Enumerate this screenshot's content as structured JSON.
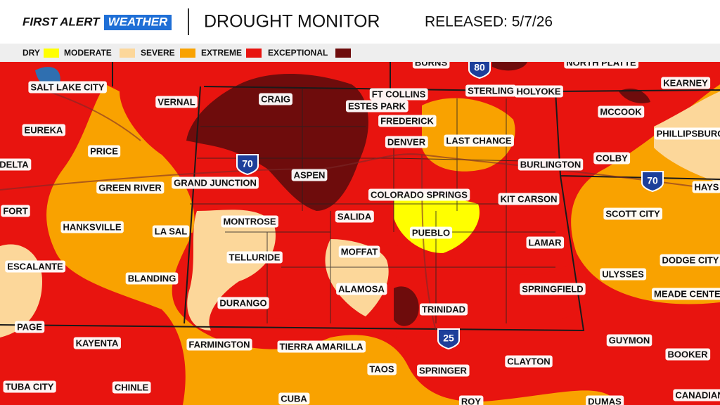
{
  "header": {
    "brand_first": "FIRST ALERT",
    "brand_weather": "WEATHER",
    "title": "DROUGHT MONITOR",
    "released": "RELEASED: 5/7/26"
  },
  "legend": [
    {
      "label": "DRY",
      "color": "#ffff00"
    },
    {
      "label": "MODERATE",
      "color": "#fcd79a"
    },
    {
      "label": "SEVERE",
      "color": "#f9a200"
    },
    {
      "label": "EXTREME",
      "color": "#e8140f"
    },
    {
      "label": "EXCEPTIONAL",
      "color": "#6e0c0c"
    }
  ],
  "cities": [
    "SALT LAKE CITY",
    "BURNS",
    "NORTH PLATTE",
    "VERNAL",
    "CRAIG",
    "FT COLLINS",
    "ESTES PARK",
    "STERLING",
    "HOLYOKE",
    "KEARNEY",
    "EUREKA",
    "FREDERICK",
    "MCCOOK",
    "PRICE",
    "DENVER",
    "LAST CHANCE",
    "PHILLIPSBURG",
    "DELTA",
    "ASPEN",
    "BURLINGTON",
    "COLBY",
    "HAYS",
    "GREEN RIVER",
    "GRAND JUNCTION",
    "COLORADO SPRINGS",
    "KIT CARSON",
    "SCOTT CITY",
    "FORT",
    "HANKSVILLE",
    "LA SAL",
    "MONTROSE",
    "SALIDA",
    "PUEBLO",
    "LAMAR",
    "MOFFAT",
    "TELLURIDE",
    "ESCALANTE",
    "DODGE CITY",
    "ULYSSES",
    "BLANDING",
    "MEADE CENTER",
    "ALAMOSA",
    "SPRINGFIELD",
    "DURANGO",
    "TRINIDAD",
    "PAGE",
    "GUYMON",
    "KAYENTA",
    "FARMINGTON",
    "TIERRA AMARILLA",
    "BOOKER",
    "CLAYTON",
    "TAOS",
    "SPRINGER",
    "TUBA CITY",
    "CHINLE",
    "CANADIAN",
    "CUBA",
    "ROY",
    "DUMAS"
  ],
  "highways": [
    "80",
    "70",
    "70",
    "25"
  ]
}
